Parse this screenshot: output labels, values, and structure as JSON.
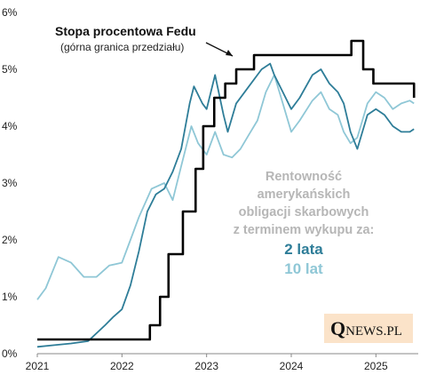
{
  "chart_data": {
    "type": "line",
    "title": "",
    "xlabel": "",
    "ylabel": "",
    "xlim": [
      2021.0,
      2025.5
    ],
    "ylim": [
      0,
      6
    ],
    "x_ticks": [
      2021,
      2022,
      2023,
      2024,
      2025
    ],
    "x_tick_labels": [
      "2021",
      "2022",
      "2023",
      "2024",
      "2025"
    ],
    "y_ticks": [
      0,
      1,
      2,
      3,
      4,
      5,
      6
    ],
    "y_tick_labels": [
      "0%",
      "1%",
      "2%",
      "3%",
      "4%",
      "5%",
      "6%"
    ],
    "grid": false,
    "annotations": {
      "fed_title": "Stopa procentowa Fedu",
      "fed_subtitle": "(górna granica przedziału)",
      "yield_title_lines": [
        "Rentowność",
        "amerykańskich",
        "obligacji  skarbowych",
        "z terminem wykupu za:"
      ],
      "label_2y": "2 lata",
      "label_10y": "10 lat",
      "logo_q": "Q",
      "logo_rest": "NEWS.PL"
    },
    "series": [
      {
        "key": "fed",
        "color": "#000000",
        "step": true,
        "x": [
          2021.0,
          2022.2,
          2022.33,
          2022.45,
          2022.55,
          2022.72,
          2022.87,
          2022.96,
          2023.09,
          2023.22,
          2023.35,
          2023.56,
          2024.71,
          2024.85,
          2024.97,
          2025.45
        ],
        "values": [
          0.25,
          0.25,
          0.5,
          1.0,
          1.75,
          2.5,
          3.25,
          4.0,
          4.5,
          4.75,
          5.0,
          5.25,
          5.5,
          5.0,
          4.75,
          4.5
        ]
      },
      {
        "key": "y2",
        "name": "2 lata",
        "color": "#2e7d98",
        "x": [
          2021.0,
          2021.2,
          2021.4,
          2021.6,
          2021.8,
          2021.9,
          2022.0,
          2022.1,
          2022.2,
          2022.3,
          2022.4,
          2022.5,
          2022.6,
          2022.7,
          2022.8,
          2022.85,
          2022.95,
          2023.0,
          2023.1,
          2023.2,
          2023.25,
          2023.35,
          2023.5,
          2023.65,
          2023.75,
          2023.8,
          2023.9,
          2024.0,
          2024.1,
          2024.25,
          2024.35,
          2024.45,
          2024.55,
          2024.62,
          2024.7,
          2024.78,
          2024.9,
          2025.0,
          2025.1,
          2025.2,
          2025.3,
          2025.4,
          2025.45
        ],
        "values": [
          0.12,
          0.15,
          0.18,
          0.22,
          0.5,
          0.65,
          0.78,
          1.2,
          1.8,
          2.5,
          2.8,
          2.9,
          3.2,
          3.6,
          4.4,
          4.7,
          4.4,
          4.3,
          4.9,
          4.2,
          3.9,
          4.4,
          4.7,
          5.0,
          5.1,
          4.9,
          4.6,
          4.3,
          4.5,
          4.9,
          5.0,
          4.75,
          4.6,
          4.4,
          3.9,
          3.6,
          4.2,
          4.3,
          4.2,
          4.0,
          3.9,
          3.9,
          3.95
        ]
      },
      {
        "key": "y10",
        "name": "10 lat",
        "color": "#8fc7d6",
        "x": [
          2021.0,
          2021.1,
          2021.25,
          2021.4,
          2021.55,
          2021.7,
          2021.85,
          2022.0,
          2022.1,
          2022.2,
          2022.35,
          2022.5,
          2022.6,
          2022.7,
          2022.82,
          2022.9,
          2023.0,
          2023.1,
          2023.2,
          2023.3,
          2023.4,
          2023.5,
          2023.6,
          2023.7,
          2023.8,
          2023.9,
          2024.0,
          2024.1,
          2024.25,
          2024.35,
          2024.45,
          2024.55,
          2024.62,
          2024.7,
          2024.78,
          2024.9,
          2025.0,
          2025.1,
          2025.2,
          2025.3,
          2025.4,
          2025.45
        ],
        "values": [
          0.95,
          1.15,
          1.7,
          1.6,
          1.35,
          1.35,
          1.55,
          1.6,
          2.0,
          2.4,
          2.9,
          3.0,
          2.7,
          3.3,
          4.0,
          3.7,
          3.5,
          3.9,
          3.5,
          3.45,
          3.6,
          3.85,
          4.1,
          4.6,
          4.9,
          4.4,
          3.9,
          4.1,
          4.45,
          4.6,
          4.3,
          4.2,
          3.9,
          3.7,
          3.8,
          4.4,
          4.6,
          4.5,
          4.3,
          4.4,
          4.45,
          4.4
        ]
      }
    ]
  }
}
